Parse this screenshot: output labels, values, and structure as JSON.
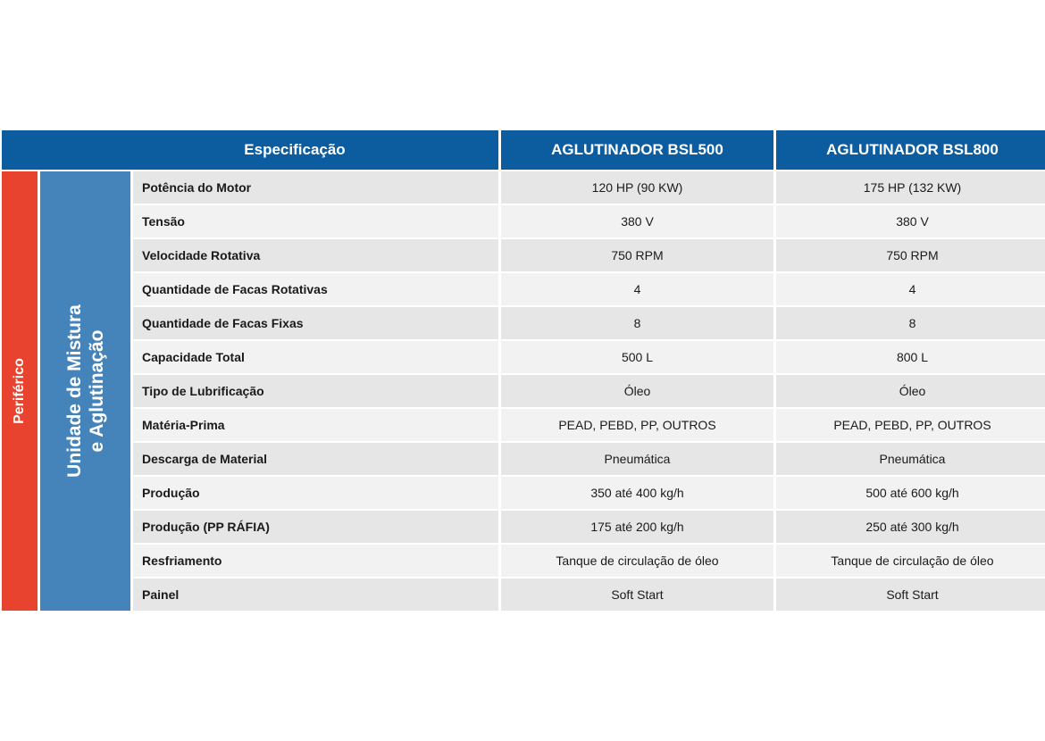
{
  "header": {
    "spec_label": "Especificação",
    "model_1": "AGLUTINADOR BSL500",
    "model_2": "AGLUTINADOR BSL800"
  },
  "categories": {
    "outer": "Periférico",
    "inner_line_1": "Unidade de Mistura",
    "inner_line_2": "e Aglutinação"
  },
  "rows": [
    {
      "label": "Potência do Motor",
      "bsl500": "120 HP (90 KW)",
      "bsl800": "175 HP (132 KW)"
    },
    {
      "label": "Tensão",
      "bsl500": "380 V",
      "bsl800": "380 V"
    },
    {
      "label": "Velocidade Rotativa",
      "bsl500": "750 RPM",
      "bsl800": "750 RPM"
    },
    {
      "label": "Quantidade de Facas Rotativas",
      "bsl500": "4",
      "bsl800": "4"
    },
    {
      "label": "Quantidade de Facas Fixas",
      "bsl500": "8",
      "bsl800": "8"
    },
    {
      "label": "Capacidade Total",
      "bsl500": "500 L",
      "bsl800": "800 L"
    },
    {
      "label": "Tipo de Lubrificação",
      "bsl500": "Óleo",
      "bsl800": "Óleo"
    },
    {
      "label": "Matéria-Prima",
      "bsl500": "PEAD, PEBD, PP, OUTROS",
      "bsl800": "PEAD, PEBD, PP, OUTROS"
    },
    {
      "label": "Descarga de Material",
      "bsl500": "Pneumática",
      "bsl800": "Pneumática"
    },
    {
      "label": "Produção",
      "bsl500": "350 até 400 kg/h",
      "bsl800": "500 até 600 kg/h"
    },
    {
      "label": "Produção (PP RÁFIA)",
      "bsl500": "175 até 200 kg/h",
      "bsl800": "250 até 300 kg/h"
    },
    {
      "label": "Resfriamento",
      "bsl500": "Tanque de circulação de óleo",
      "bsl800": "Tanque de circulação de óleo"
    },
    {
      "label": "Painel",
      "bsl500": "Soft Start",
      "bsl800": "Soft Start"
    }
  ],
  "colors": {
    "header_blue": "#0c5ca0",
    "category_red": "#e8432f",
    "category_blue": "#4584bb",
    "row_dark": "#e6e6e6",
    "row_light": "#f2f2f2"
  }
}
